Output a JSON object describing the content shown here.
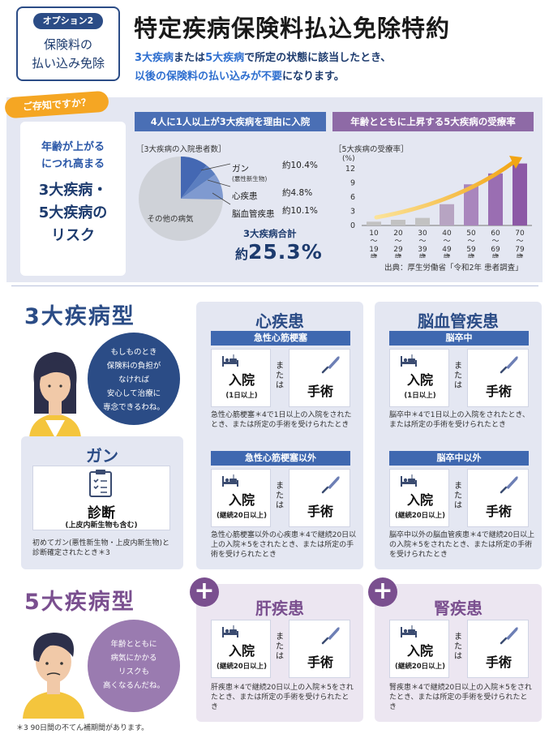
{
  "option": {
    "badge": "オプション2",
    "sub1": "保険料の",
    "sub2": "払い込み免除"
  },
  "title": "特定疾病保険料払込免除特約",
  "lead": {
    "part1": "3大疾病",
    "part2": "または",
    "part3": "5大疾病",
    "part4": "で所定の状態に該当したとき、",
    "line2a": "以後の保険料の払い込みが不要",
    "line2b": "になります。"
  },
  "know": {
    "tag": "ご存知ですか？",
    "l1": "年齢が上がる",
    "l2": "につれ高まる",
    "l3": "3大疾病・",
    "l4": "5大疾病の",
    "l5": "リスク"
  },
  "pie": {
    "header": "4人に1人以上が3大疾病を理由に入院",
    "caption": "［3大疾病の入院患者数］",
    "other": "その他の病気",
    "items": [
      {
        "label": "ガン",
        "sub": "(悪性新生物)",
        "value": "約10.4%"
      },
      {
        "label": "心疾患",
        "sub": "",
        "value": "約4.8%"
      },
      {
        "label": "脳血管疾患",
        "sub": "",
        "value": "約10.1%"
      }
    ],
    "total_label": "3大疾病合計",
    "total_prefix": "約",
    "total_value": "25.3%"
  },
  "chart_data": {
    "type": "bar",
    "header": "年齢とともに上昇する5大疾病の受療率",
    "caption": "［5大疾病の受療率］",
    "ylabel": "(%)",
    "ylim": [
      0,
      12
    ],
    "yticks": [
      "12",
      "9",
      "6",
      "3",
      "0"
    ],
    "categories": [
      [
        "10",
        "〜",
        "19",
        "歳"
      ],
      [
        "20",
        "〜",
        "29",
        "歳"
      ],
      [
        "30",
        "〜",
        "39",
        "歳"
      ],
      [
        "40",
        "〜",
        "49",
        "歳"
      ],
      [
        "50",
        "〜",
        "59",
        "歳"
      ],
      [
        "60",
        "〜",
        "69",
        "歳"
      ],
      [
        "70",
        "〜",
        "79",
        "歳"
      ]
    ],
    "values": [
      0.8,
      1.2,
      1.6,
      4.5,
      8.7,
      11.0,
      13.1
    ],
    "colors": [
      "#c2c2c2",
      "#c2c2c2",
      "#c2c2c2",
      "#b7a4c2",
      "#a986bd",
      "#9a6eb2",
      "#8c58a6"
    ],
    "source": "出典：厚生労働省「令和2年 患者調査」"
  },
  "three": {
    "title": "3大疾病型",
    "bubble": [
      "もしものとき",
      "保険料の負担が",
      "なければ",
      "安心して治療に",
      "専念できるわね。"
    ]
  },
  "gan": {
    "title": "ガン",
    "label": "診断",
    "sub": "(上皮内新生物も含む)",
    "desc": "初めてガン(悪性新生物・上皮内新生物)と診断確定されたとき＊3"
  },
  "shin": {
    "title": "心疾患",
    "a": {
      "bar": "急性心筋梗塞",
      "in": "入院",
      "insub": "(1日以上)",
      "or": "または",
      "op": "手術",
      "desc": "急性心筋梗塞＊4で1日以上の入院をされたとき、または所定の手術を受けられたとき"
    },
    "b": {
      "bar": "急性心筋梗塞以外",
      "in": "入院",
      "insub": "(継続20日以上)",
      "or": "または",
      "op": "手術",
      "desc": "急性心筋梗塞以外の心疾患＊4で継続20日以上の入院＊5をされたとき、または所定の手術を受けられたとき"
    }
  },
  "nou": {
    "title": "脳血管疾患",
    "a": {
      "bar": "脳卒中",
      "in": "入院",
      "insub": "(1日以上)",
      "or": "または",
      "op": "手術",
      "desc": "脳卒中＊4で1日以上の入院をされたとき、または所定の手術を受けられたとき"
    },
    "b": {
      "bar": "脳卒中以外",
      "in": "入院",
      "insub": "(継続20日以上)",
      "or": "または",
      "op": "手術",
      "desc": "脳卒中以外の脳血管疾患＊4で継続20日以上の入院＊5をされたとき、または所定の手術を受けられたとき"
    }
  },
  "five": {
    "title": "5大疾病型",
    "bubble": [
      "年齢とともに",
      "病気にかかる",
      "リスクも",
      "高くなるんだね。"
    ]
  },
  "kan": {
    "title": "肝疾患",
    "in": "入院",
    "insub": "(継続20日以上)",
    "or": "または",
    "op": "手術",
    "desc": "肝疾患＊4で継続20日以上の入院＊5をされたとき、または所定の手術を受けられたとき"
  },
  "jin": {
    "title": "腎疾患",
    "in": "入院",
    "insub": "(継続20日以上)",
    "or": "または",
    "op": "手術",
    "desc": "腎疾患＊4で継続20日以上の入院＊5をされたとき、または所定の手術を受けられたとき"
  },
  "footnote": "＊3 90日間の不てん補期間があります。"
}
